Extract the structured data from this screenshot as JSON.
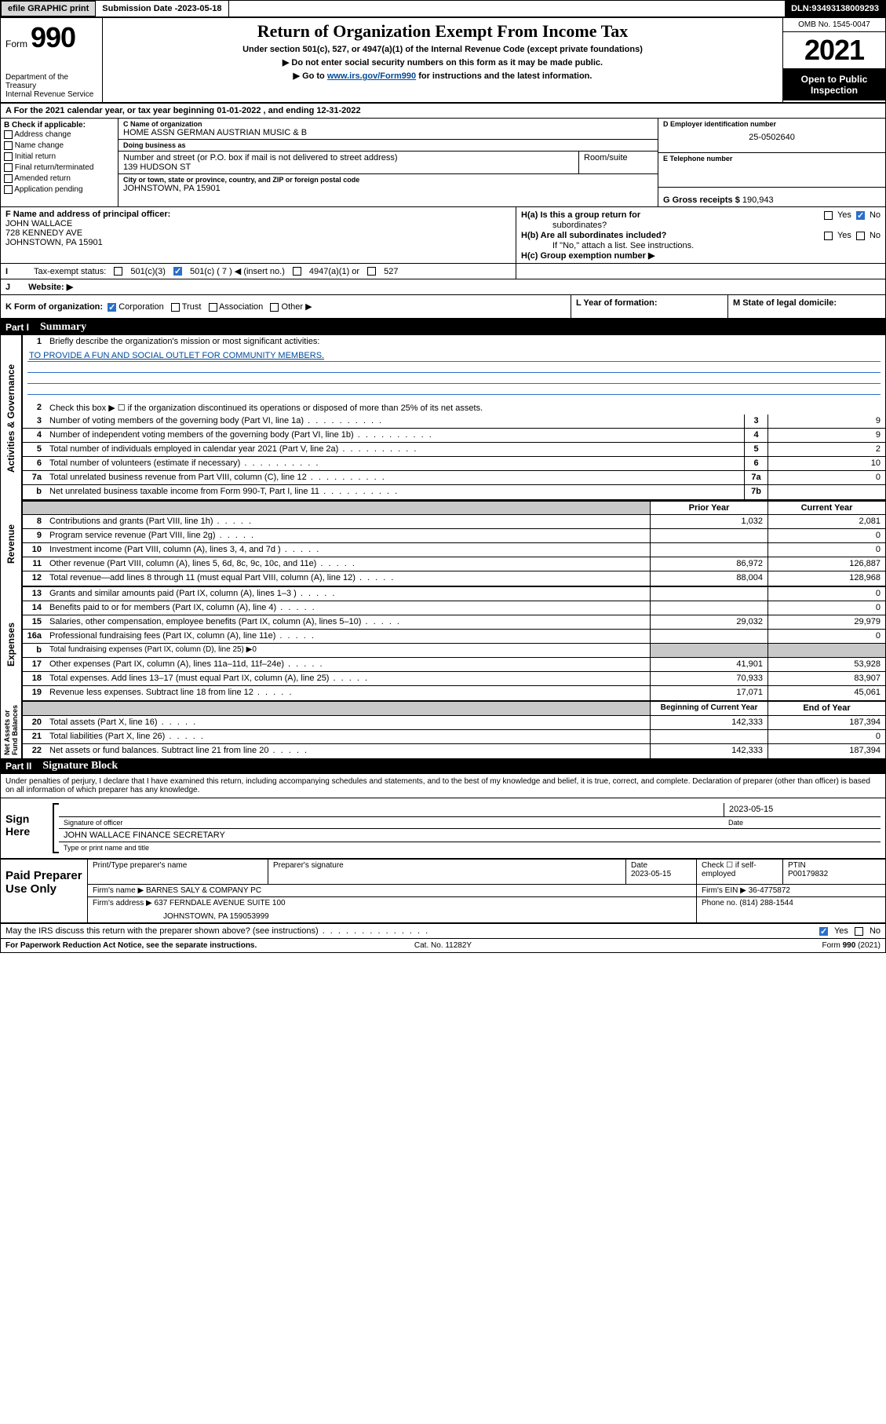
{
  "colors": {
    "link": "#004b9b",
    "check_blue": "#2a6fc9",
    "topbar_gray": "#606060",
    "btn_gray": "#d8d8d8",
    "shade": "#c8c8c8"
  },
  "topbar": {
    "efile": "efile GRAPHIC print",
    "submission_label": "Submission Date - ",
    "submission_date": "2023-05-18",
    "dln_label": "DLN: ",
    "dln": "93493138009293"
  },
  "header": {
    "form_word": "Form",
    "form_number": "990",
    "dept": "Department of the Treasury\nInternal Revenue Service",
    "title": "Return of Organization Exempt From Income Tax",
    "sub1": "Under section 501(c), 527, or 4947(a)(1) of the Internal Revenue Code (except private foundations)",
    "sub2_pre": "▶ Do not enter social security numbers on this form as it may be made public.",
    "sub3_pre": "▶ Go to ",
    "sub3_link": "www.irs.gov/Form990",
    "sub3_post": " for instructions and the latest information.",
    "omb": "OMB No. 1545-0047",
    "year": "2021",
    "open": "Open to Public Inspection"
  },
  "period": {
    "A": "A For the 2021 calendar year, or tax year beginning ",
    "begin": "01-01-2022",
    "mid": " , and ending ",
    "end": "12-31-2022"
  },
  "B": {
    "label": "B Check if applicable:",
    "items": [
      "Address change",
      "Name change",
      "Initial return",
      "Final return/terminated",
      "Amended return",
      "Application pending"
    ]
  },
  "C": {
    "name_label": "C Name of organization",
    "name": "HOME ASSN GERMAN AUSTRIAN MUSIC & B",
    "dba_label": "Doing business as",
    "dba": "",
    "street_label": "Number and street (or P.O. box if mail is not delivered to street address)",
    "room_label": "Room/suite",
    "street": "139 HUDSON ST",
    "city_label": "City or town, state or province, country, and ZIP or foreign postal code",
    "city": "JOHNSTOWN, PA  15901"
  },
  "D": {
    "label": "D Employer identification number",
    "ein": "25-0502640"
  },
  "E": {
    "label": "E Telephone number",
    "phone": ""
  },
  "G": {
    "label": "G Gross receipts $",
    "amount": "190,943"
  },
  "F": {
    "label": "F Name and address of principal officer:",
    "name": "JOHN WALLACE",
    "street": "728 KENNEDY AVE",
    "city": "JOHNSTOWN, PA  15901"
  },
  "H": {
    "a_label": "H(a)  Is this a group return for",
    "a_label2": "subordinates?",
    "b_label": "H(b)  Are all subordinates included?",
    "b_note": "If \"No,\" attach a list. See instructions.",
    "c_label": "H(c)  Group exemption number ▶",
    "yes": "Yes",
    "no": "No",
    "ha_checked": "no"
  },
  "I": {
    "label": "Tax-exempt status:",
    "opts": {
      "501c3": "501(c)(3)",
      "501c": "501(c) ( 7 ) ◀ (insert no.)",
      "4947": "4947(a)(1) or",
      "527": "527"
    },
    "checked": "501c"
  },
  "J": {
    "label": "Website: ▶",
    "value": ""
  },
  "K": {
    "label": "K Form of organization:",
    "opts": [
      "Corporation",
      "Trust",
      "Association",
      "Other ▶"
    ],
    "checked": "Corporation"
  },
  "L": {
    "label": "L Year of formation:",
    "value": ""
  },
  "M": {
    "label": "M State of legal domicile:",
    "value": ""
  },
  "part1": {
    "num": "Part I",
    "title": "Summary"
  },
  "summary": {
    "line1_label": "Briefly describe the organization's mission or most significant activities:",
    "line1_text": "TO PROVIDE A FUN AND SOCIAL OUTLET FOR COMMUNITY MEMBERS.",
    "line2": "Check this box ▶ ☐  if the organization discontinued its operations or disposed of more than 25% of its net assets.",
    "rows_gov": [
      {
        "n": "3",
        "d": "Number of voting members of the governing body (Part VI, line 1a)",
        "box": "3",
        "v": "9"
      },
      {
        "n": "4",
        "d": "Number of independent voting members of the governing body (Part VI, line 1b)",
        "box": "4",
        "v": "9"
      },
      {
        "n": "5",
        "d": "Total number of individuals employed in calendar year 2021 (Part V, line 2a)",
        "box": "5",
        "v": "2"
      },
      {
        "n": "6",
        "d": "Total number of volunteers (estimate if necessary)",
        "box": "6",
        "v": "10"
      },
      {
        "n": "7a",
        "d": "Total unrelated business revenue from Part VIII, column (C), line 12",
        "box": "7a",
        "v": "0"
      },
      {
        "n": "b",
        "d": "Net unrelated business taxable income from Form 990-T, Part I, line 11",
        "box": "7b",
        "v": ""
      }
    ],
    "hdr_prior": "Prior Year",
    "hdr_current": "Current Year",
    "rows_rev": [
      {
        "n": "8",
        "d": "Contributions and grants (Part VIII, line 1h)",
        "p": "1,032",
        "c": "2,081"
      },
      {
        "n": "9",
        "d": "Program service revenue (Part VIII, line 2g)",
        "p": "",
        "c": "0"
      },
      {
        "n": "10",
        "d": "Investment income (Part VIII, column (A), lines 3, 4, and 7d )",
        "p": "",
        "c": "0"
      },
      {
        "n": "11",
        "d": "Other revenue (Part VIII, column (A), lines 5, 6d, 8c, 9c, 10c, and 11e)",
        "p": "86,972",
        "c": "126,887"
      },
      {
        "n": "12",
        "d": "Total revenue—add lines 8 through 11 (must equal Part VIII, column (A), line 12)",
        "p": "88,004",
        "c": "128,968"
      }
    ],
    "rows_exp": [
      {
        "n": "13",
        "d": "Grants and similar amounts paid (Part IX, column (A), lines 1–3 )",
        "p": "",
        "c": "0"
      },
      {
        "n": "14",
        "d": "Benefits paid to or for members (Part IX, column (A), line 4)",
        "p": "",
        "c": "0"
      },
      {
        "n": "15",
        "d": "Salaries, other compensation, employee benefits (Part IX, column (A), lines 5–10)",
        "p": "29,032",
        "c": "29,979"
      },
      {
        "n": "16a",
        "d": "Professional fundraising fees (Part IX, column (A), line 11e)",
        "p": "",
        "c": "0"
      },
      {
        "n": "b",
        "d": "Total fundraising expenses (Part IX, column (D), line 25) ▶0",
        "p": null,
        "c": null,
        "shade": true
      },
      {
        "n": "17",
        "d": "Other expenses (Part IX, column (A), lines 11a–11d, 11f–24e)",
        "p": "41,901",
        "c": "53,928"
      },
      {
        "n": "18",
        "d": "Total expenses. Add lines 13–17 (must equal Part IX, column (A), line 25)",
        "p": "70,933",
        "c": "83,907"
      },
      {
        "n": "19",
        "d": "Revenue less expenses. Subtract line 18 from line 12",
        "p": "17,071",
        "c": "45,061"
      }
    ],
    "hdr_begin": "Beginning of Current Year",
    "hdr_end": "End of Year",
    "rows_na": [
      {
        "n": "20",
        "d": "Total assets (Part X, line 16)",
        "p": "142,333",
        "c": "187,394"
      },
      {
        "n": "21",
        "d": "Total liabilities (Part X, line 26)",
        "p": "",
        "c": "0"
      },
      {
        "n": "22",
        "d": "Net assets or fund balances. Subtract line 21 from line 20",
        "p": "142,333",
        "c": "187,394"
      }
    ],
    "side_gov": "Activities & Governance",
    "side_rev": "Revenue",
    "side_exp": "Expenses",
    "side_na": "Net Assets or\nFund Balances"
  },
  "part2": {
    "num": "Part II",
    "title": "Signature Block"
  },
  "penalties": "Under penalties of perjury, I declare that I have examined this return, including accompanying schedules and statements, and to the best of my knowledge and belief, it is true, correct, and complete. Declaration of preparer (other than officer) is based on all information of which preparer has any knowledge.",
  "sign": {
    "label": "Sign Here",
    "sig_officer": "Signature of officer",
    "date_label": "Date",
    "date": "2023-05-15",
    "name": "JOHN WALLACE FINANCE SECRETARY",
    "name_label": "Type or print name and title"
  },
  "preparer": {
    "label": "Paid Preparer Use Only",
    "h_name": "Print/Type preparer's name",
    "h_sig": "Preparer's signature",
    "h_date": "Date",
    "date": "2023-05-15",
    "h_check": "Check ☐ if self-employed",
    "h_ptin": "PTIN",
    "ptin": "P00179832",
    "firm_name_label": "Firm's name    ▶",
    "firm_name": "BARNES SALY & COMPANY PC",
    "firm_ein_label": "Firm's EIN ▶",
    "firm_ein": "36-4775872",
    "firm_addr_label": "Firm's address ▶",
    "firm_addr1": "637 FERNDALE AVENUE SUITE 100",
    "firm_addr2": "JOHNSTOWN, PA  159053999",
    "phone_label": "Phone no.",
    "phone": "(814) 288-1544"
  },
  "discuss": {
    "text": "May the IRS discuss this return with the preparer shown above? (see instructions)",
    "yes": "Yes",
    "no": "No",
    "checked": "yes"
  },
  "footer": {
    "left": "For Paperwork Reduction Act Notice, see the separate instructions.",
    "mid": "Cat. No. 11282Y",
    "right_pre": "Form ",
    "right_form": "990",
    "right_post": " (2021)"
  }
}
